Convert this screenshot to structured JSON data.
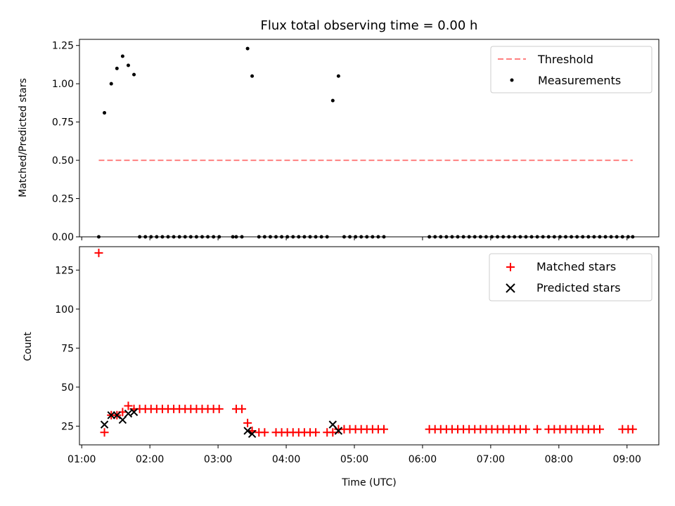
{
  "chart_data": [
    {
      "type": "scatter",
      "title": "Flux total observing time = 0.00 h",
      "xlabel": "",
      "ylabel": "Matched/Predicted stars",
      "xlim": [
        "00:58",
        "09:28"
      ],
      "ylim": [
        0,
        1.29
      ],
      "yticks": [
        "0.00",
        "0.25",
        "0.50",
        "0.75",
        "1.00",
        "1.25"
      ],
      "legend_position": "top-right",
      "grid": false,
      "series": [
        {
          "name": "Threshold",
          "kind": "dashed-line",
          "color": "#ff8080",
          "x": [
            "01:15",
            "09:05"
          ],
          "y": [
            0.5,
            0.5
          ]
        },
        {
          "name": "Measurements",
          "kind": "points",
          "color": "#000000",
          "x": [
            "01:15",
            "01:20",
            "01:26",
            "01:31",
            "01:36",
            "01:41",
            "01:46",
            "01:51",
            "01:56",
            "02:01",
            "02:06",
            "02:11",
            "02:16",
            "02:21",
            "02:26",
            "02:31",
            "02:36",
            "02:41",
            "02:46",
            "02:51",
            "02:56",
            "03:01",
            "03:13",
            "03:16",
            "03:21",
            "03:26",
            "03:30",
            "03:36",
            "03:41",
            "03:46",
            "03:51",
            "03:56",
            "04:01",
            "04:06",
            "04:11",
            "04:16",
            "04:21",
            "04:26",
            "04:31",
            "04:36",
            "04:41",
            "04:46",
            "04:51",
            "04:56",
            "05:01",
            "05:06",
            "05:11",
            "05:16",
            "05:21",
            "05:26",
            "06:06",
            "06:11",
            "06:16",
            "06:21",
            "06:26",
            "06:31",
            "06:36",
            "06:41",
            "06:46",
            "06:51",
            "06:56",
            "07:01",
            "07:06",
            "07:11",
            "07:16",
            "07:21",
            "07:26",
            "07:31",
            "07:36",
            "07:41",
            "07:46",
            "07:51",
            "07:56",
            "08:01",
            "08:06",
            "08:11",
            "08:16",
            "08:21",
            "08:26",
            "08:31",
            "08:36",
            "08:41",
            "08:46",
            "08:51",
            "08:56",
            "09:01",
            "09:05"
          ],
          "y": [
            0,
            0.81,
            1.0,
            1.1,
            1.18,
            1.12,
            1.06,
            0,
            0,
            0,
            0,
            0,
            0,
            0,
            0,
            0,
            0,
            0,
            0,
            0,
            0,
            0,
            0,
            0,
            0,
            1.23,
            1.05,
            0,
            0,
            0,
            0,
            0,
            0,
            0,
            0,
            0,
            0,
            0,
            0,
            0,
            0.89,
            1.05,
            0,
            0,
            0,
            0,
            0,
            0,
            0,
            0,
            0,
            0,
            0,
            0,
            0,
            0,
            0,
            0,
            0,
            0,
            0,
            0,
            0,
            0,
            0,
            0,
            0,
            0,
            0,
            0,
            0,
            0,
            0,
            0,
            0,
            0,
            0,
            0,
            0,
            0,
            0,
            0,
            0,
            0,
            0,
            0,
            0
          ]
        }
      ]
    },
    {
      "type": "scatter",
      "title": "",
      "xlabel": "Time (UTC)",
      "ylabel": "Count",
      "xlim": [
        "00:58",
        "09:28"
      ],
      "ylim": [
        13,
        140
      ],
      "yticks": [
        "25",
        "50",
        "75",
        "100",
        "125"
      ],
      "xticks": [
        "01:00",
        "02:00",
        "03:00",
        "04:00",
        "05:00",
        "06:00",
        "07:00",
        "08:00",
        "09:00"
      ],
      "legend_position": "top-right",
      "grid": false,
      "series": [
        {
          "name": "Matched stars",
          "kind": "plus",
          "color": "#ff0000",
          "x": [
            "01:15",
            "01:20",
            "01:26",
            "01:31",
            "01:36",
            "01:41",
            "01:46",
            "01:51",
            "01:56",
            "02:01",
            "02:06",
            "02:11",
            "02:16",
            "02:21",
            "02:26",
            "02:31",
            "02:36",
            "02:41",
            "02:46",
            "02:51",
            "02:56",
            "03:01",
            "03:16",
            "03:21",
            "03:26",
            "03:30",
            "03:36",
            "03:41",
            "03:51",
            "03:56",
            "04:01",
            "04:06",
            "04:11",
            "04:16",
            "04:21",
            "04:26",
            "04:36",
            "04:41",
            "04:46",
            "04:51",
            "04:56",
            "05:01",
            "05:06",
            "05:11",
            "05:16",
            "05:21",
            "05:26",
            "06:06",
            "06:11",
            "06:16",
            "06:21",
            "06:26",
            "06:31",
            "06:36",
            "06:41",
            "06:46",
            "06:51",
            "06:56",
            "07:01",
            "07:06",
            "07:11",
            "07:16",
            "07:21",
            "07:26",
            "07:31",
            "07:41",
            "07:51",
            "07:56",
            "08:01",
            "08:06",
            "08:11",
            "08:16",
            "08:21",
            "08:26",
            "08:31",
            "08:36",
            "08:56",
            "09:01",
            "09:05"
          ],
          "y": [
            136,
            21,
            32,
            32,
            34,
            38,
            36,
            36,
            36,
            36,
            36,
            36,
            36,
            36,
            36,
            36,
            36,
            36,
            36,
            36,
            36,
            36,
            36,
            36,
            27,
            22,
            21,
            21,
            21,
            21,
            21,
            21,
            21,
            21,
            21,
            21,
            21,
            21,
            23,
            23,
            23,
            23,
            23,
            23,
            23,
            23,
            23,
            23,
            23,
            23,
            23,
            23,
            23,
            23,
            23,
            23,
            23,
            23,
            23,
            23,
            23,
            23,
            23,
            23,
            23,
            23,
            23,
            23,
            23,
            23,
            23,
            23,
            23,
            23,
            23,
            23,
            23,
            23,
            23
          ]
        },
        {
          "name": "Predicted stars",
          "kind": "x",
          "color": "#000000",
          "x": [
            "01:20",
            "01:26",
            "01:31",
            "01:36",
            "01:41",
            "01:46",
            "03:26",
            "03:30",
            "04:41",
            "04:46"
          ],
          "y": [
            26,
            32,
            32,
            29,
            33,
            34,
            22,
            20,
            26,
            22
          ]
        }
      ]
    }
  ]
}
